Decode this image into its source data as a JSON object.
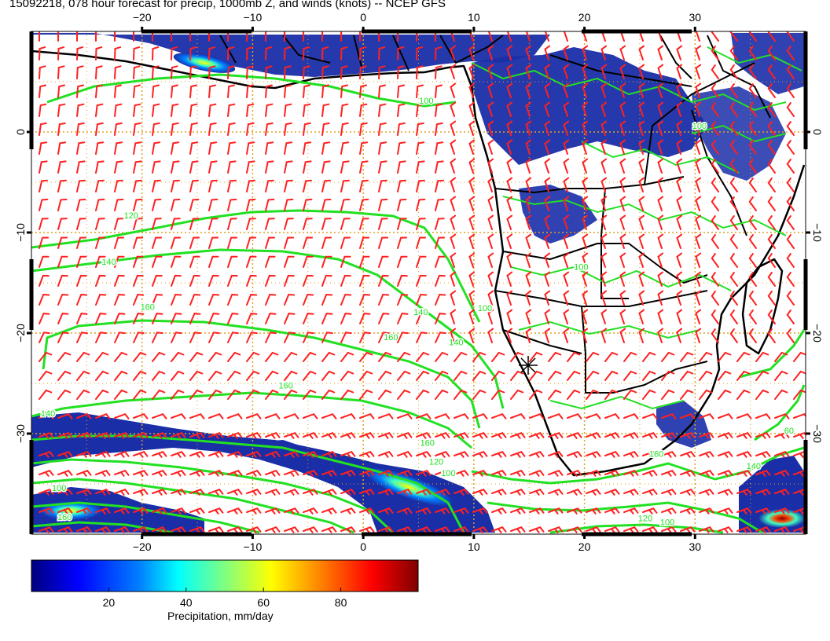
{
  "title": "15092218, 078 hour forecast for precip, 1000mb Z, and winds (knots) -- NCEP GFS",
  "map": {
    "lon_range": [
      -30,
      40
    ],
    "lat_range": [
      -40,
      10
    ],
    "lon_ticks": [
      {
        "value": -20,
        "label": "−20"
      },
      {
        "value": -10,
        "label": "−10"
      },
      {
        "value": 0,
        "label": "0"
      },
      {
        "value": 10,
        "label": "10"
      },
      {
        "value": 20,
        "label": "20"
      },
      {
        "value": 30,
        "label": "30"
      }
    ],
    "lat_ticks": [
      {
        "value": 0,
        "label": "0"
      },
      {
        "value": -10,
        "label": "−10"
      },
      {
        "value": -20,
        "label": "−20"
      },
      {
        "value": -30,
        "label": "−30"
      }
    ],
    "grid_lines": true,
    "colors": {
      "grid": "#e0a020",
      "contour": "#22e022",
      "wind": "#ff2020",
      "coast": "#000000",
      "precip": "#1a2ea8"
    },
    "contour_labels": [
      {
        "text": "120",
        "lon": -21,
        "lat": -8.6
      },
      {
        "text": "140",
        "lon": -23,
        "lat": -13.2
      },
      {
        "text": "160",
        "lon": -19.5,
        "lat": -17.7
      },
      {
        "text": "160",
        "lon": 2.5,
        "lat": -20.7
      },
      {
        "text": "160",
        "lon": -7,
        "lat": -25.5
      },
      {
        "text": "140",
        "lon": -28.5,
        "lat": -28.3
      },
      {
        "text": "140",
        "lon": 8.4,
        "lat": -21.2
      },
      {
        "text": "100",
        "lon": 11,
        "lat": -17.8
      },
      {
        "text": "140",
        "lon": 5.2,
        "lat": -18.2
      },
      {
        "text": "160",
        "lon": 5.8,
        "lat": -31.2
      },
      {
        "text": "120",
        "lon": 6.6,
        "lat": -33.1
      },
      {
        "text": "100",
        "lon": 7.7,
        "lat": -34.2
      },
      {
        "text": "100",
        "lon": -27.5,
        "lat": -35.7
      },
      {
        "text": "160",
        "lon": -27,
        "lat": -38.6
      },
      {
        "text": "160",
        "lon": 26.5,
        "lat": -32.3
      },
      {
        "text": "120",
        "lon": 25.5,
        "lat": -38.7
      },
      {
        "text": "100",
        "lon": 27.5,
        "lat": -39.1
      },
      {
        "text": "140",
        "lon": 35.3,
        "lat": -33.5
      },
      {
        "text": "100",
        "lon": 30.4,
        "lat": 0.3
      },
      {
        "text": "100",
        "lon": 5.7,
        "lat": 2.8
      },
      {
        "text": "100",
        "lon": 19.7,
        "lat": -13.7
      },
      {
        "text": "60",
        "lon": 38.5,
        "lat": -30
      }
    ]
  },
  "colorbar": {
    "range": [
      0,
      100
    ],
    "ticks": [
      {
        "value": 20,
        "label": "20"
      },
      {
        "value": 40,
        "label": "40"
      },
      {
        "value": 60,
        "label": "60"
      },
      {
        "value": 80,
        "label": "80"
      }
    ],
    "label": "Precipitation, mm/day",
    "colors": [
      "#00007f",
      "#0000ff",
      "#0080ff",
      "#00ffff",
      "#80ff80",
      "#ffff00",
      "#ff8000",
      "#ff0000",
      "#7f0000"
    ]
  }
}
